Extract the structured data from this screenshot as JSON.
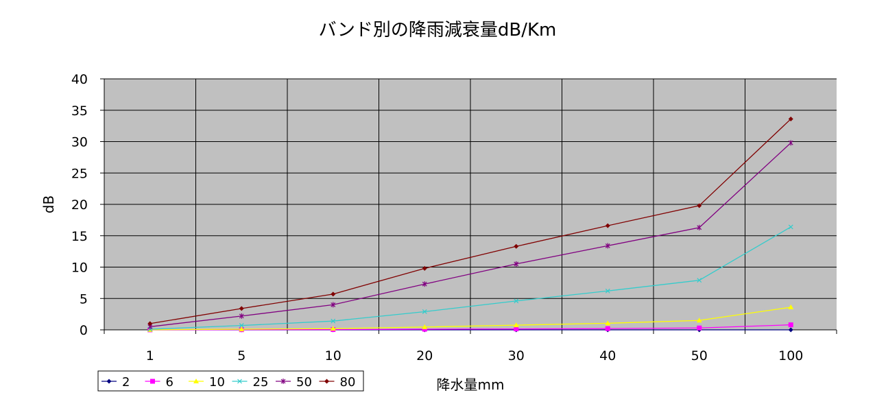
{
  "chart_data": {
    "type": "line",
    "title": "バンド別の降雨減衰量dB/Km",
    "xlabel": "降水量mm",
    "ylabel": "dB",
    "categories": [
      "1",
      "5",
      "10",
      "20",
      "30",
      "40",
      "50",
      "100"
    ],
    "yticks": [
      "0",
      "5",
      "10",
      "15",
      "20",
      "25",
      "30",
      "35",
      "40"
    ],
    "ylim": [
      0,
      40
    ],
    "grid": true,
    "plot_background": "#c0c0c0",
    "legend_position": "bottom-left",
    "series": [
      {
        "name": "2",
        "color": "#000080",
        "marker": "diamond",
        "values": [
          0.0,
          0.0,
          0.0,
          0.0,
          0.0,
          0.0,
          0.0,
          0.0
        ]
      },
      {
        "name": "6",
        "color": "#ff00ff",
        "marker": "square",
        "values": [
          0.0,
          0.03,
          0.05,
          0.1,
          0.15,
          0.2,
          0.3,
          0.8
        ]
      },
      {
        "name": "10",
        "color": "#ffff00",
        "marker": "triangle",
        "values": [
          0.02,
          0.1,
          0.2,
          0.45,
          0.75,
          1.05,
          1.5,
          3.6
        ]
      },
      {
        "name": "25",
        "color": "#33cccc",
        "marker": "x",
        "values": [
          0.1,
          0.7,
          1.4,
          2.9,
          4.6,
          6.2,
          7.9,
          16.4
        ]
      },
      {
        "name": "50",
        "color": "#800080",
        "marker": "star",
        "values": [
          0.5,
          2.2,
          4.0,
          7.3,
          10.5,
          13.4,
          16.3,
          29.8
        ]
      },
      {
        "name": "80",
        "color": "#800000",
        "marker": "diamond",
        "values": [
          1.0,
          3.4,
          5.7,
          9.8,
          13.3,
          16.6,
          19.8,
          33.6
        ]
      }
    ]
  }
}
